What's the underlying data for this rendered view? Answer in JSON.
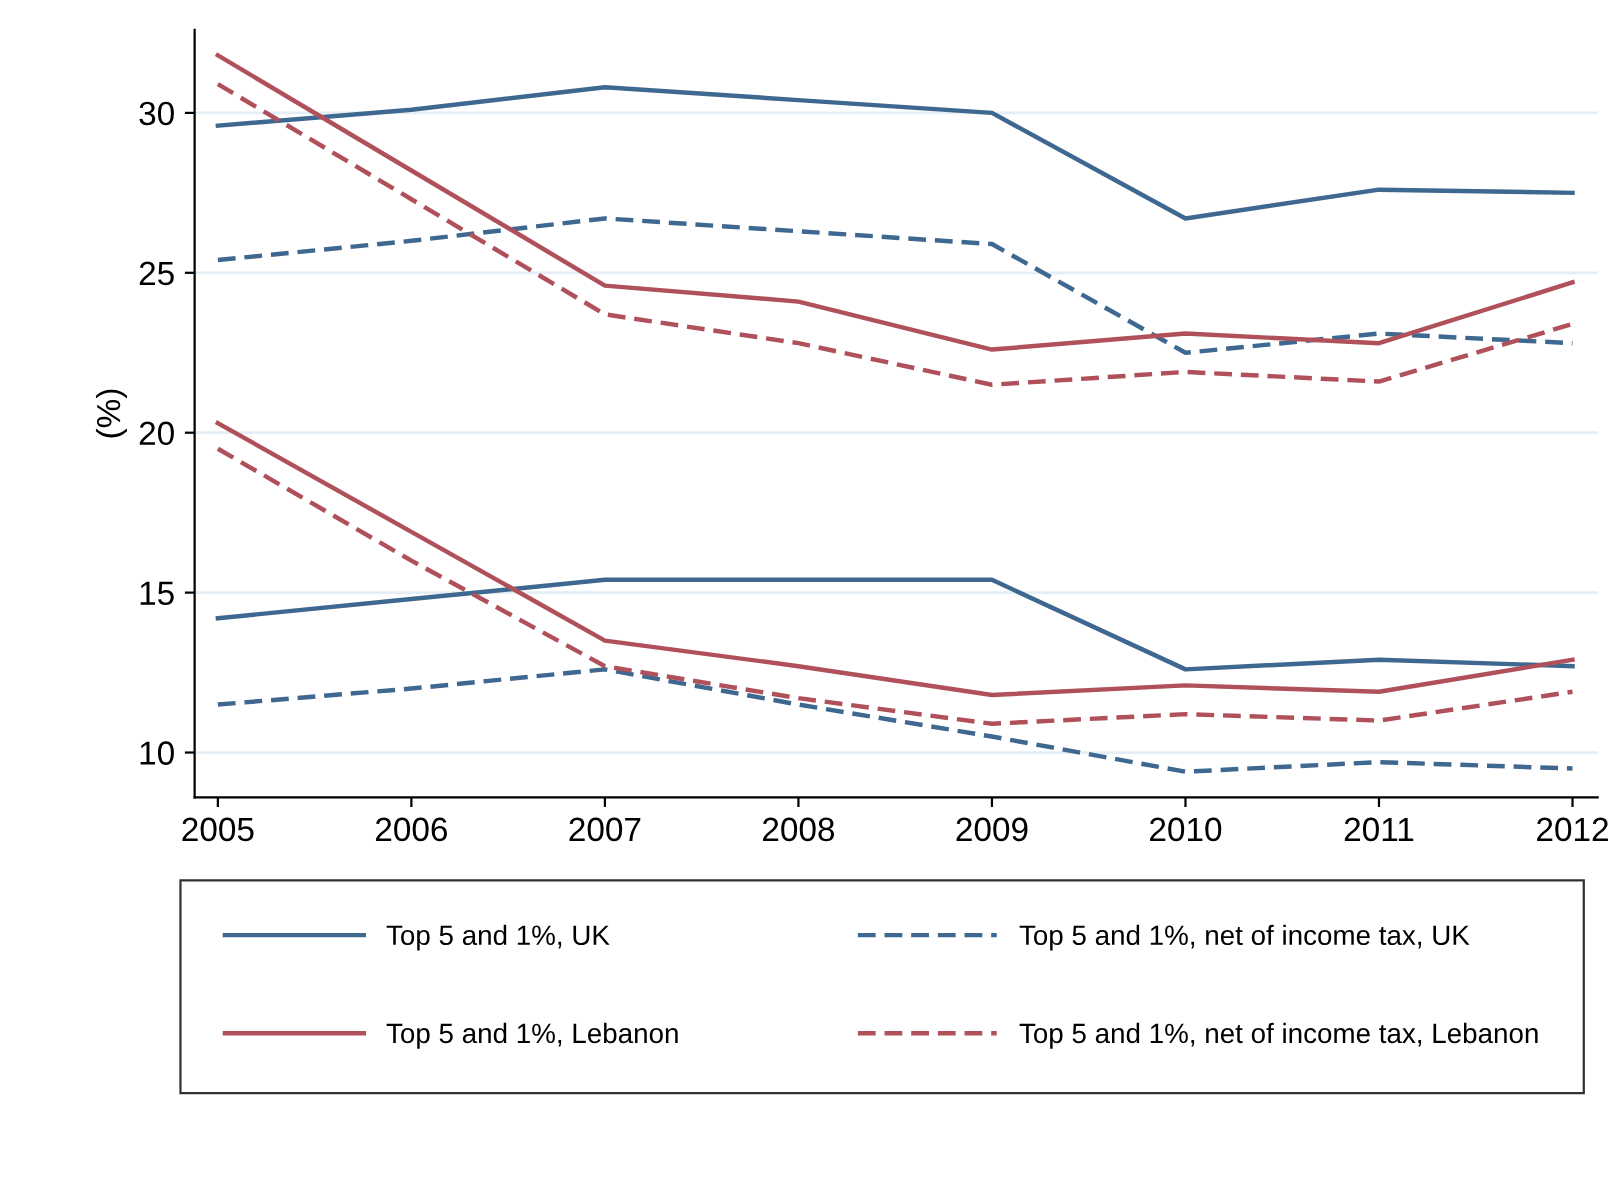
{
  "chart_data": {
    "type": "line",
    "ylabel": "(%)",
    "x": [
      2005,
      2006,
      2007,
      2008,
      2009,
      2010,
      2011,
      2012
    ],
    "xlim": [
      2004.88,
      2012.13
    ],
    "xticks": [
      2005,
      2006,
      2007,
      2008,
      2009,
      2010,
      2011,
      2012
    ],
    "ylim": [
      8.6,
      32.6
    ],
    "yticks": [
      10,
      15,
      20,
      25,
      30
    ],
    "grid": "y",
    "legend": "bottom",
    "marker": "none",
    "series": [
      {
        "name": "Top 5 and 1%, UK",
        "color": "#3e6890",
        "line_style": "solid",
        "values": [
          29.6,
          30.1,
          30.8,
          30.4,
          30.0,
          26.7,
          27.6,
          27.5
        ]
      },
      {
        "name": "Top 5 and 1%, net of income tax, UK",
        "color": "#3e6890",
        "line_style": "dashed",
        "values": [
          25.4,
          26.0,
          26.7,
          26.3,
          25.9,
          22.5,
          23.1,
          22.8
        ]
      },
      {
        "name": "Top 5 and 1%, Lebanon",
        "color": "#b0505a",
        "line_style": "solid",
        "values": [
          31.8,
          28.2,
          24.6,
          24.1,
          22.6,
          23.1,
          22.8,
          24.7
        ]
      },
      {
        "name": "Top 5 and 1%, net of income tax, Lebanon",
        "color": "#b0505a",
        "line_style": "dashed",
        "values": [
          30.9,
          27.3,
          23.7,
          22.8,
          21.5,
          21.9,
          21.6,
          23.4
        ]
      },
      {
        "color": "#3e6890",
        "line_style": "solid",
        "values": [
          14.2,
          14.8,
          15.4,
          15.4,
          15.4,
          12.6,
          12.9,
          12.7
        ]
      },
      {
        "color": "#3e6890",
        "line_style": "dashed",
        "values": [
          11.5,
          12.0,
          12.6,
          11.5,
          10.5,
          9.4,
          9.7,
          9.5
        ]
      },
      {
        "color": "#b0505a",
        "line_style": "solid",
        "values": [
          20.3,
          16.9,
          13.5,
          12.7,
          11.8,
          12.1,
          11.9,
          12.9
        ]
      },
      {
        "color": "#b0505a",
        "line_style": "dashed",
        "values": [
          19.5,
          16.0,
          12.7,
          11.7,
          10.9,
          11.2,
          11.0,
          11.9
        ]
      }
    ]
  }
}
